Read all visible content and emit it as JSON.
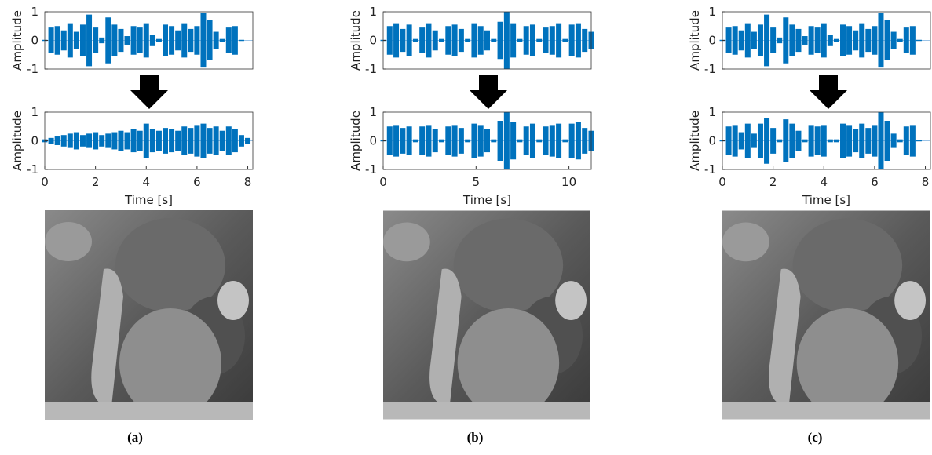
{
  "chart_data": [
    {
      "type": "waveform",
      "ylabel": "Amplitude",
      "color": "#0072bd",
      "xlim": [
        0,
        8.2
      ],
      "ylim": [
        -1,
        1
      ],
      "yticks": [
        -1,
        0,
        1
      ],
      "x": [
        0,
        0.25,
        0.5,
        0.75,
        1,
        1.25,
        1.5,
        1.75,
        2,
        2.25,
        2.5,
        2.75,
        3,
        3.25,
        3.5,
        3.75,
        4,
        4.25,
        4.5,
        4.75,
        5,
        5.25,
        5.5,
        5.75,
        6,
        6.25,
        6.5,
        6.75,
        7,
        7.25,
        7.5,
        7.75,
        8
      ],
      "values": [
        0.02,
        0.45,
        0.5,
        0.35,
        0.6,
        0.3,
        0.55,
        0.9,
        0.45,
        0.1,
        0.8,
        0.55,
        0.4,
        0.15,
        0.5,
        0.45,
        0.6,
        0.2,
        0.05,
        0.55,
        0.5,
        0.35,
        0.6,
        0.4,
        0.5,
        0.95,
        0.7,
        0.3,
        0.05,
        0.45,
        0.5,
        0.02,
        0
      ]
    },
    {
      "type": "waveform",
      "ylabel": "Amplitude",
      "xlabel": "Time [s]",
      "color": "#0072bd",
      "xlim": [
        0,
        8.2
      ],
      "ylim": [
        -1,
        1
      ],
      "yticks": [
        -1,
        0,
        1
      ],
      "xticks": [
        0,
        2,
        4,
        6,
        8
      ],
      "x": [
        0,
        0.25,
        0.5,
        0.75,
        1,
        1.25,
        1.5,
        1.75,
        2,
        2.25,
        2.5,
        2.75,
        3,
        3.25,
        3.5,
        3.75,
        4,
        4.25,
        4.5,
        4.75,
        5,
        5.25,
        5.5,
        5.75,
        6,
        6.25,
        6.5,
        6.75,
        7,
        7.25,
        7.5,
        7.75,
        8
      ],
      "values": [
        0.05,
        0.1,
        0.15,
        0.2,
        0.25,
        0.3,
        0.2,
        0.25,
        0.3,
        0.2,
        0.25,
        0.3,
        0.35,
        0.3,
        0.4,
        0.35,
        0.6,
        0.4,
        0.35,
        0.45,
        0.4,
        0.35,
        0.5,
        0.45,
        0.55,
        0.6,
        0.45,
        0.5,
        0.35,
        0.5,
        0.4,
        0.2,
        0.1
      ]
    },
    {
      "type": "waveform",
      "ylabel": "Amplitude",
      "color": "#0072bd",
      "xlim": [
        0,
        11.2
      ],
      "ylim": [
        -1,
        1
      ],
      "yticks": [
        -1,
        0,
        1
      ],
      "x": [
        0,
        0.35,
        0.7,
        1.05,
        1.4,
        1.75,
        2.1,
        2.45,
        2.8,
        3.15,
        3.5,
        3.85,
        4.2,
        4.55,
        4.9,
        5.25,
        5.6,
        5.95,
        6.3,
        6.65,
        7,
        7.35,
        7.7,
        8.05,
        8.4,
        8.75,
        9.1,
        9.45,
        9.8,
        10.15,
        10.5,
        10.85,
        11.2
      ],
      "values": [
        0.02,
        0.5,
        0.6,
        0.4,
        0.55,
        0.05,
        0.45,
        0.6,
        0.35,
        0.05,
        0.5,
        0.55,
        0.4,
        0.05,
        0.6,
        0.5,
        0.35,
        0.05,
        0.65,
        1,
        0.6,
        0.05,
        0.5,
        0.55,
        0.05,
        0.45,
        0.5,
        0.6,
        0.05,
        0.55,
        0.6,
        0.4,
        0.3
      ]
    },
    {
      "type": "waveform",
      "ylabel": "Amplitude",
      "xlabel": "Time [s]",
      "color": "#0072bd",
      "xlim": [
        0,
        11.2
      ],
      "ylim": [
        -1,
        1
      ],
      "yticks": [
        -1,
        0,
        1
      ],
      "xticks": [
        0,
        5,
        10
      ],
      "x": [
        0,
        0.35,
        0.7,
        1.05,
        1.4,
        1.75,
        2.1,
        2.45,
        2.8,
        3.15,
        3.5,
        3.85,
        4.2,
        4.55,
        4.9,
        5.25,
        5.6,
        5.95,
        6.3,
        6.65,
        7,
        7.35,
        7.7,
        8.05,
        8.4,
        8.75,
        9.1,
        9.45,
        9.8,
        10.15,
        10.5,
        10.85,
        11.2
      ],
      "values": [
        0.02,
        0.5,
        0.55,
        0.45,
        0.5,
        0.05,
        0.5,
        0.55,
        0.4,
        0.05,
        0.5,
        0.55,
        0.45,
        0.05,
        0.6,
        0.55,
        0.4,
        0.05,
        0.7,
        1,
        0.65,
        0.05,
        0.5,
        0.6,
        0.05,
        0.5,
        0.55,
        0.6,
        0.05,
        0.6,
        0.65,
        0.45,
        0.35
      ]
    },
    {
      "type": "waveform",
      "ylabel": "Amplitude",
      "color": "#0072bd",
      "xlim": [
        0,
        8.2
      ],
      "ylim": [
        -1,
        1
      ],
      "yticks": [
        -1,
        0,
        1
      ],
      "x": [
        0,
        0.25,
        0.5,
        0.75,
        1,
        1.25,
        1.5,
        1.75,
        2,
        2.25,
        2.5,
        2.75,
        3,
        3.25,
        3.5,
        3.75,
        4,
        4.25,
        4.5,
        4.75,
        5,
        5.25,
        5.5,
        5.75,
        6,
        6.25,
        6.5,
        6.75,
        7,
        7.25,
        7.5,
        7.75,
        8
      ],
      "values": [
        0.02,
        0.45,
        0.5,
        0.35,
        0.6,
        0.3,
        0.55,
        0.9,
        0.45,
        0.1,
        0.8,
        0.55,
        0.4,
        0.15,
        0.5,
        0.45,
        0.6,
        0.2,
        0.05,
        0.55,
        0.5,
        0.35,
        0.6,
        0.4,
        0.5,
        0.95,
        0.7,
        0.3,
        0.05,
        0.45,
        0.5,
        0.02,
        0
      ]
    },
    {
      "type": "waveform",
      "ylabel": "Amplitude",
      "xlabel": "Time [s]",
      "color": "#0072bd",
      "xlim": [
        0,
        8.2
      ],
      "ylim": [
        -1,
        1
      ],
      "yticks": [
        -1,
        0,
        1
      ],
      "xticks": [
        0,
        2,
        4,
        6,
        8
      ],
      "x": [
        0,
        0.25,
        0.5,
        0.75,
        1,
        1.25,
        1.5,
        1.75,
        2,
        2.25,
        2.5,
        2.75,
        3,
        3.25,
        3.5,
        3.75,
        4,
        4.25,
        4.5,
        4.75,
        5,
        5.25,
        5.5,
        5.75,
        6,
        6.25,
        6.5,
        6.75,
        7,
        7.25,
        7.5,
        7.75,
        8
      ],
      "values": [
        0.02,
        0.5,
        0.55,
        0.3,
        0.6,
        0.25,
        0.6,
        0.8,
        0.45,
        0.05,
        0.75,
        0.6,
        0.35,
        0.05,
        0.55,
        0.5,
        0.55,
        0.05,
        0.05,
        0.6,
        0.55,
        0.4,
        0.6,
        0.45,
        0.55,
        1,
        0.7,
        0.25,
        0.05,
        0.5,
        0.55,
        0.02,
        0
      ]
    }
  ],
  "captions": [
    "(a)",
    "(b)",
    "(c)"
  ]
}
